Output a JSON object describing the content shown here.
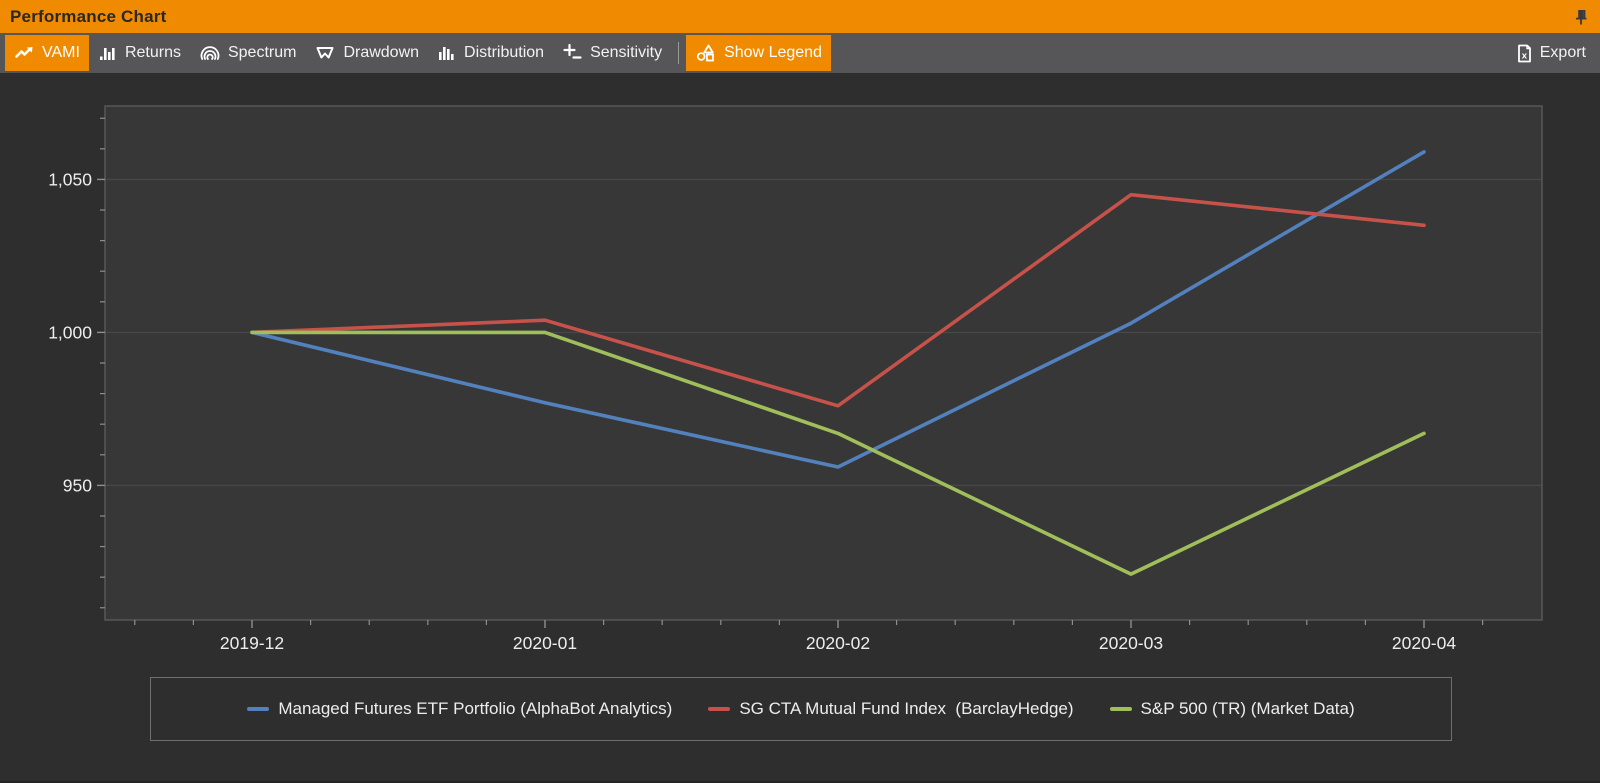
{
  "window": {
    "title": "Performance Chart"
  },
  "titlebar": {
    "pin_icon": "pushpin-icon"
  },
  "toolbar": {
    "buttons": [
      {
        "id": "vami",
        "label": "VAMI",
        "icon": "trend-line-icon",
        "active": true
      },
      {
        "id": "returns",
        "label": "Returns",
        "icon": "bar-chart-icon",
        "active": false
      },
      {
        "id": "spectrum",
        "label": "Spectrum",
        "icon": "arcs-icon",
        "active": false
      },
      {
        "id": "drawdown",
        "label": "Drawdown",
        "icon": "pennant-icon",
        "active": false
      },
      {
        "id": "distribution",
        "label": "Distribution",
        "icon": "histogram-icon",
        "active": false
      },
      {
        "id": "sensitivity",
        "label": "Sensitivity",
        "icon": "plus-minus-icon",
        "active": false
      }
    ],
    "toggle": {
      "label": "Show Legend",
      "icon": "shapes-icon",
      "active": true
    },
    "export": {
      "label": "Export",
      "icon": "excel-file-icon"
    }
  },
  "chart_data": {
    "type": "line",
    "title": "VAMI",
    "x": [
      "2019-12",
      "2020-01",
      "2020-02",
      "2020-03",
      "2020-04"
    ],
    "series": [
      {
        "name": "Managed Futures ETF Portfolio (AlphaBot Analytics)",
        "color": "#5381bd",
        "values": [
          1000,
          977,
          956,
          1003,
          1059
        ]
      },
      {
        "name": "SG CTA Mutual Fund Index  (BarclayHedge)",
        "color": "#c6524a",
        "values": [
          1000,
          1004,
          976,
          1045,
          1035
        ]
      },
      {
        "name": "S&P 500 (TR) (Market Data)",
        "color": "#a0bf5a",
        "values": [
          1000,
          1000,
          967,
          921,
          967
        ]
      }
    ],
    "yticks": [
      {
        "value": 950,
        "label": "950"
      },
      {
        "value": 1000,
        "label": "1,000"
      },
      {
        "value": 1050,
        "label": "1,050"
      }
    ],
    "ylim": [
      906,
      1074
    ],
    "y_minor_step": 10,
    "grid": "horizontal-major-only",
    "legend_position": "bottom"
  },
  "colors": {
    "accent_orange": "#f08a00",
    "titlebar_text": "#282828",
    "toolbar_bg": "#565659",
    "toolbar_text": "#f2f2f2",
    "chart_outer_bg": "#2e2e2f",
    "plot_bg": "#373737",
    "plot_border": "#5a5a5a",
    "gridline": "#474747",
    "tick": "#8f8f8f",
    "axis_label_text": "#ededed",
    "legend_border": "#6f6f6f"
  }
}
